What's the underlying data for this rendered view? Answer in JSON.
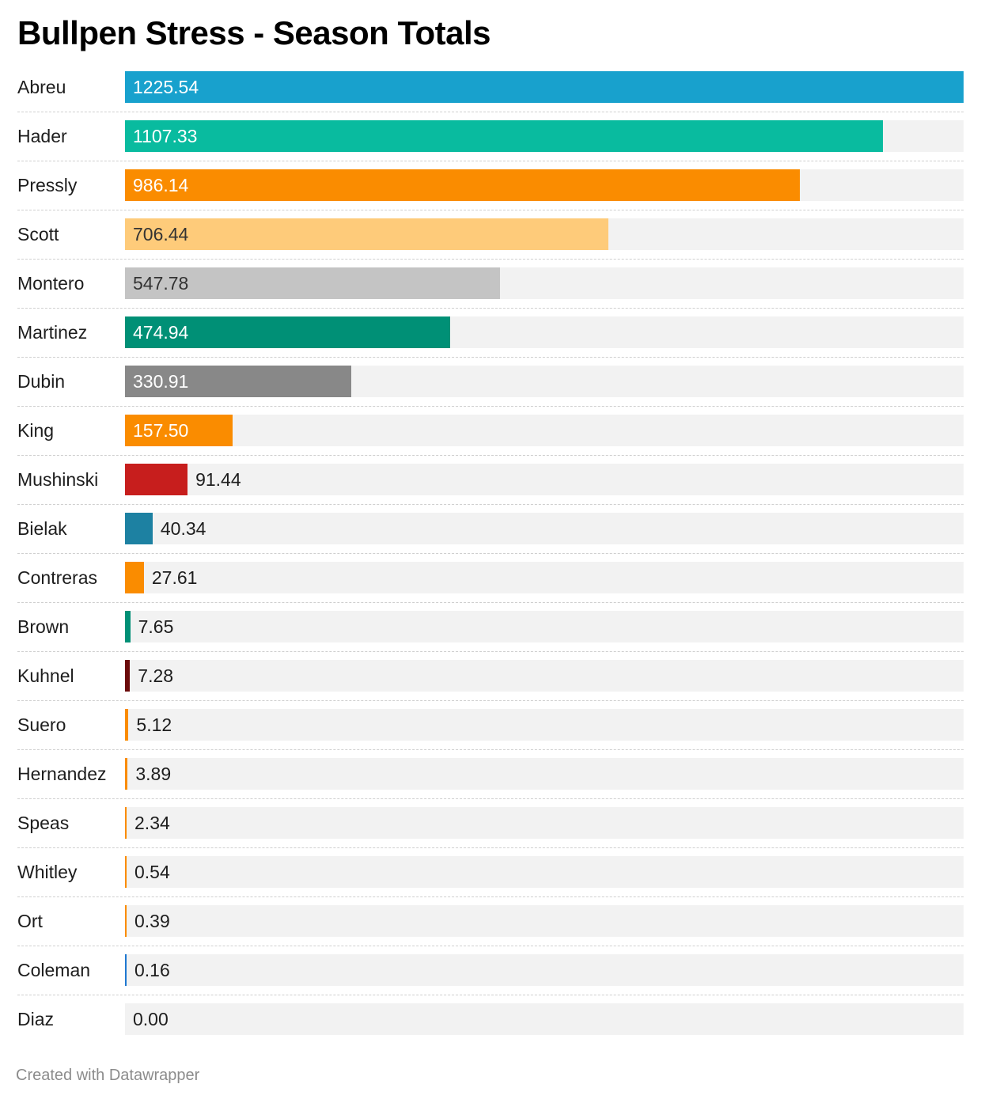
{
  "chart_data": {
    "type": "bar",
    "orientation": "horizontal",
    "title": "Bullpen Stress - Season Totals",
    "categories": [
      "Abreu",
      "Hader",
      "Pressly",
      "Scott",
      "Montero",
      "Martinez",
      "Dubin",
      "King",
      "Mushinski",
      "Bielak",
      "Contreras",
      "Brown",
      "Kuhnel",
      "Suero",
      "Hernandez",
      "Speas",
      "Whitley",
      "Ort",
      "Coleman",
      "Diaz"
    ],
    "values": [
      1225.54,
      1107.33,
      986.14,
      706.44,
      547.78,
      474.94,
      330.91,
      157.5,
      91.44,
      40.34,
      27.61,
      7.65,
      7.28,
      5.12,
      3.89,
      2.34,
      0.54,
      0.39,
      0.16,
      0.0
    ],
    "value_labels": [
      "1225.54",
      "1107.33",
      "986.14",
      "706.44",
      "547.78",
      "474.94",
      "330.91",
      "157.50",
      "91.44",
      "40.34",
      "27.61",
      "7.65",
      "7.28",
      "5.12",
      "3.89",
      "2.34",
      "0.54",
      "0.39",
      "0.16",
      "0.00"
    ],
    "colors": [
      "#18a1cd",
      "#09bb9f",
      "#fa8c00",
      "#fecb7a",
      "#c4c4c4",
      "#009076",
      "#888888",
      "#fa8c00",
      "#c71e1d",
      "#1d81a2",
      "#fa8c00",
      "#009076",
      "#6b0b0b",
      "#fa8c00",
      "#fa8c00",
      "#fa8c00",
      "#fa8c00",
      "#fa8c00",
      "#1f78d1",
      "#fa8c00"
    ],
    "xlim": [
      0,
      1225.54
    ],
    "track_color": "#f2f2f2",
    "grid": false,
    "legend": "none"
  },
  "footer": "Created with Datawrapper"
}
